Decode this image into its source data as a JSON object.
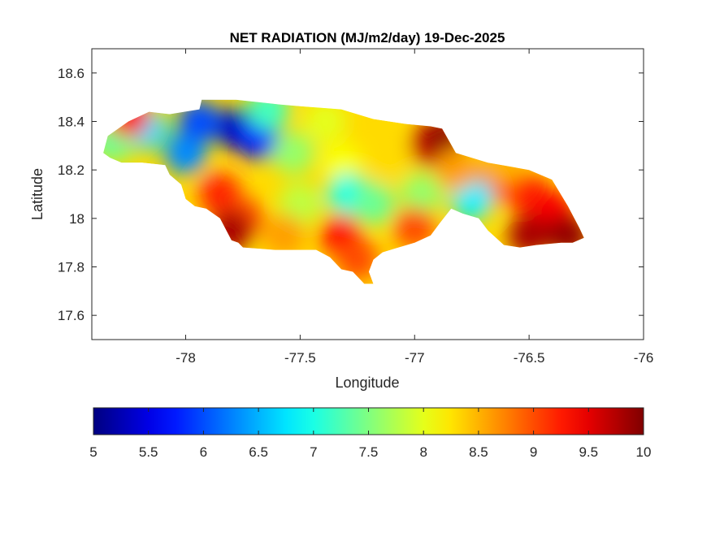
{
  "chart_data": {
    "type": "heatmap",
    "title": "NET RADIATION (MJ/m2/day) 19-Dec-2025",
    "xlabel": "Longitude",
    "ylabel": "Latitude",
    "xlim": [
      -78.41,
      -76
    ],
    "ylim": [
      17.5,
      18.7
    ],
    "xticks": [
      -78,
      -77.5,
      -77,
      -76.5,
      -76
    ],
    "xtick_labels": [
      "-78",
      "-77.5",
      "-77",
      "-76.5",
      "-76"
    ],
    "yticks": [
      18.6,
      18.4,
      18.2,
      18,
      17.8,
      17.6
    ],
    "ytick_labels": [
      "18.6",
      "18.4",
      "18.2",
      "18",
      "17.8",
      "17.6"
    ],
    "colorbar": {
      "colormap": "jet",
      "range": [
        5,
        10
      ],
      "ticks": [
        5,
        5.5,
        6,
        6.5,
        7,
        7.5,
        8,
        8.5,
        9,
        9.5,
        10
      ],
      "tick_labels": [
        "5",
        "5.5",
        "6",
        "6.5",
        "7",
        "7.5",
        "8",
        "8.5",
        "9",
        "9.5",
        "10"
      ],
      "placement": "bottom"
    },
    "grid": false,
    "region_outline": [
      [
        -78.36,
        18.27
      ],
      [
        -78.34,
        18.34
      ],
      [
        -78.25,
        18.4
      ],
      [
        -78.16,
        18.44
      ],
      [
        -78.07,
        18.43
      ],
      [
        -77.94,
        18.45
      ],
      [
        -77.93,
        18.49
      ],
      [
        -77.78,
        18.49
      ],
      [
        -77.59,
        18.47
      ],
      [
        -77.46,
        18.46
      ],
      [
        -77.32,
        18.45
      ],
      [
        -77.18,
        18.41
      ],
      [
        -77.04,
        18.39
      ],
      [
        -76.93,
        18.38
      ],
      [
        -76.88,
        18.37
      ],
      [
        -76.82,
        18.27
      ],
      [
        -76.68,
        18.23
      ],
      [
        -76.5,
        18.2
      ],
      [
        -76.4,
        18.16
      ],
      [
        -76.33,
        18.05
      ],
      [
        -76.28,
        17.96
      ],
      [
        -76.26,
        17.92
      ],
      [
        -76.31,
        17.9
      ],
      [
        -76.36,
        17.9
      ],
      [
        -76.47,
        17.89
      ],
      [
        -76.54,
        17.88
      ],
      [
        -76.61,
        17.89
      ],
      [
        -76.68,
        17.95
      ],
      [
        -76.72,
        18.0
      ],
      [
        -76.79,
        18.02
      ],
      [
        -76.84,
        18.04
      ],
      [
        -76.89,
        17.98
      ],
      [
        -76.93,
        17.93
      ],
      [
        -77.0,
        17.9
      ],
      [
        -77.07,
        17.88
      ],
      [
        -77.14,
        17.86
      ],
      [
        -77.18,
        17.83
      ],
      [
        -77.2,
        17.78
      ],
      [
        -77.18,
        17.73
      ],
      [
        -77.22,
        17.73
      ],
      [
        -77.27,
        17.78
      ],
      [
        -77.32,
        17.79
      ],
      [
        -77.37,
        17.84
      ],
      [
        -77.43,
        17.87
      ],
      [
        -77.61,
        17.87
      ],
      [
        -77.75,
        17.88
      ],
      [
        -77.77,
        17.9
      ],
      [
        -77.8,
        17.91
      ],
      [
        -77.85,
        18.0
      ],
      [
        -77.91,
        18.04
      ],
      [
        -77.96,
        18.05
      ],
      [
        -78.0,
        18.08
      ],
      [
        -78.02,
        18.14
      ],
      [
        -78.07,
        18.18
      ],
      [
        -78.09,
        18.22
      ],
      [
        -78.19,
        18.23
      ],
      [
        -78.28,
        18.23
      ],
      [
        -78.33,
        18.25
      ]
    ],
    "base_value": 8.3,
    "field_samples": [
      [
        -77.78,
        18.37,
        5.3
      ],
      [
        -77.68,
        18.33,
        5.7
      ],
      [
        -78.0,
        18.27,
        6.3
      ],
      [
        -78.17,
        18.37,
        6.7
      ],
      [
        -77.94,
        18.4,
        6.0
      ],
      [
        -77.39,
        18.4,
        8.0
      ],
      [
        -78.32,
        18.32,
        7.4
      ],
      [
        -77.85,
        18.1,
        9.2
      ],
      [
        -77.75,
        18.0,
        9.0
      ],
      [
        -77.8,
        17.95,
        9.8
      ],
      [
        -77.53,
        18.27,
        7.6
      ],
      [
        -77.32,
        18.23,
        8.1
      ],
      [
        -77.29,
        18.1,
        7.0
      ],
      [
        -77.18,
        18.06,
        7.4
      ],
      [
        -77.32,
        17.93,
        9.3
      ],
      [
        -77.25,
        17.83,
        9.0
      ],
      [
        -76.93,
        18.3,
        9.6
      ],
      [
        -76.88,
        18.33,
        9.9
      ],
      [
        -76.68,
        18.13,
        9.0
      ],
      [
        -76.5,
        18.1,
        9.2
      ],
      [
        -76.4,
        18.03,
        9.4
      ],
      [
        -76.5,
        17.93,
        9.8
      ],
      [
        -76.33,
        17.93,
        9.9
      ],
      [
        -76.75,
        18.08,
        6.8
      ],
      [
        -76.97,
        18.1,
        7.6
      ],
      [
        -77.0,
        17.96,
        9.0
      ],
      [
        -77.11,
        18.23,
        8.3
      ],
      [
        -77.5,
        18.06,
        7.8
      ],
      [
        -77.57,
        17.93,
        8.6
      ],
      [
        -78.25,
        18.42,
        9.3
      ],
      [
        -77.64,
        18.45,
        7.2
      ],
      [
        -76.82,
        18.2,
        8.6
      ],
      [
        -76.61,
        18.23,
        8.5
      ]
    ]
  }
}
